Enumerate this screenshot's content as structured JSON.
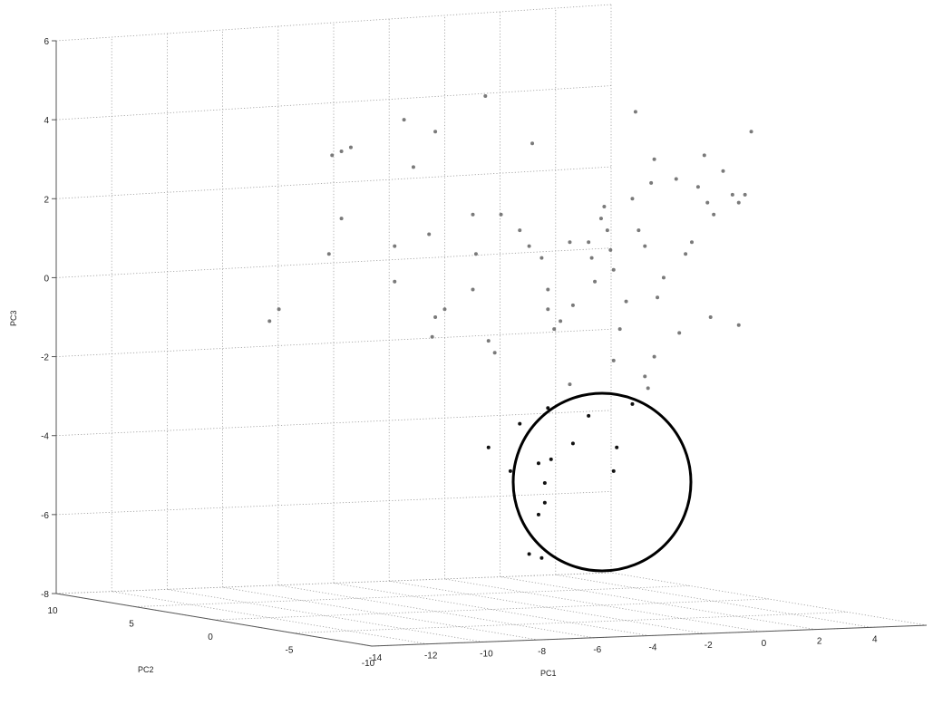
{
  "chart_data": {
    "type": "scatter",
    "projection": "3d",
    "title": "",
    "xlabel": "PC1",
    "ylabel": "PC2",
    "zlabel": "PC3",
    "xlim": [
      -14,
      6
    ],
    "ylim": [
      -10,
      10
    ],
    "zlim": [
      -8,
      6
    ],
    "grid": true,
    "x_ticks": [
      "-14",
      "-12",
      "-10",
      "-8",
      "-6",
      "-4",
      "-2",
      "0",
      "2",
      "4"
    ],
    "y_ticks": [
      "10",
      "5",
      "0",
      "-5",
      "-10"
    ],
    "z_ticks": [
      "6",
      "4",
      "2",
      "0",
      "-2",
      "-4",
      "-6",
      "-8"
    ],
    "point_color": "#7a7a7a",
    "highlight_color": "#111111",
    "highlight": {
      "shape": "circle",
      "description_points": "points with PC3 below about -3"
    },
    "points": [
      [
        -13.5,
        0,
        -1.1
      ],
      [
        -13.2,
        0,
        -0.8
      ],
      [
        -11.6,
        0,
        0.6
      ],
      [
        -11.5,
        0,
        3.1
      ],
      [
        -11.2,
        0,
        3.2
      ],
      [
        -10.9,
        0,
        3.3
      ],
      [
        -11.2,
        0,
        1.5
      ],
      [
        -9.5,
        0,
        0.8
      ],
      [
        -9.5,
        0,
        -0.1
      ],
      [
        -9.2,
        0,
        4.0
      ],
      [
        -8.9,
        0,
        2.8
      ],
      [
        -8.4,
        0,
        1.1
      ],
      [
        -8.3,
        0,
        -1.5
      ],
      [
        -8.2,
        0,
        -1.0
      ],
      [
        -7.9,
        0,
        -0.8
      ],
      [
        -8.2,
        0,
        3.7
      ],
      [
        -7.0,
        0,
        1.6
      ],
      [
        -6.9,
        0,
        0.6
      ],
      [
        -7.0,
        0,
        -0.3
      ],
      [
        -6.6,
        0,
        4.6
      ],
      [
        -6.3,
        0,
        -1.9
      ],
      [
        -6.1,
        0,
        1.6
      ],
      [
        -5.5,
        0,
        1.2
      ],
      [
        -5.2,
        0,
        0.8
      ],
      [
        -5.1,
        0,
        3.4
      ],
      [
        -4.8,
        0,
        0.5
      ],
      [
        -4.6,
        0,
        -0.3
      ],
      [
        -4.6,
        0,
        -0.8
      ],
      [
        -4.4,
        0,
        -1.3
      ],
      [
        -4.2,
        0,
        -1.1
      ],
      [
        -3.9,
        0,
        0.9
      ],
      [
        -3.8,
        0,
        -0.7
      ],
      [
        -3.3,
        0,
        0.9
      ],
      [
        -3.2,
        0,
        0.5
      ],
      [
        -3.1,
        0,
        -0.1
      ],
      [
        -2.9,
        0,
        1.5
      ],
      [
        -2.8,
        0,
        1.8
      ],
      [
        -2.7,
        0,
        1.2
      ],
      [
        -2.6,
        0,
        0.7
      ],
      [
        -2.5,
        0,
        0.2
      ],
      [
        -2.3,
        0,
        -1.3
      ],
      [
        -2.1,
        0,
        -0.6
      ],
      [
        -1.9,
        0,
        2.0
      ],
      [
        -1.8,
        0,
        4.2
      ],
      [
        -1.7,
        0,
        1.2
      ],
      [
        -1.5,
        0,
        0.8
      ],
      [
        -1.3,
        0,
        2.4
      ],
      [
        -1.2,
        0,
        3.0
      ],
      [
        -1.1,
        0,
        -0.5
      ],
      [
        -0.9,
        0,
        0.0
      ],
      [
        -0.5,
        0,
        2.5
      ],
      [
        -0.2,
        0,
        0.6
      ],
      [
        0.0,
        0,
        0.9
      ],
      [
        0.2,
        0,
        2.3
      ],
      [
        0.4,
        0,
        3.1
      ],
      [
        0.5,
        0,
        1.9
      ],
      [
        0.7,
        0,
        1.6
      ],
      [
        1.0,
        0,
        2.7
      ],
      [
        1.3,
        0,
        2.1
      ],
      [
        1.5,
        0,
        1.9
      ],
      [
        1.7,
        0,
        2.1
      ],
      [
        1.9,
        0,
        3.7
      ],
      [
        1.5,
        0,
        -1.2
      ],
      [
        0.6,
        0,
        -1.0
      ],
      [
        -0.4,
        0,
        -1.4
      ],
      [
        -2.5,
        0,
        -2.1
      ],
      [
        -1.5,
        0,
        -2.5
      ],
      [
        -1.4,
        0,
        -2.8
      ],
      [
        -1.9,
        0,
        -3.2
      ],
      [
        -3.9,
        0,
        -2.7
      ],
      [
        -4.6,
        0,
        -3.3
      ],
      [
        -5.5,
        0,
        -3.7
      ],
      [
        -6.5,
        0,
        -4.3
      ],
      [
        -5.8,
        0,
        -4.9
      ],
      [
        -4.9,
        0,
        -4.7
      ],
      [
        -4.5,
        0,
        -4.6
      ],
      [
        -3.8,
        0,
        -4.2
      ],
      [
        -3.3,
        0,
        -3.5
      ],
      [
        -2.4,
        0,
        -4.3
      ],
      [
        -2.5,
        0,
        -4.9
      ],
      [
        -4.7,
        0,
        -5.2
      ],
      [
        -4.7,
        0,
        -5.7
      ],
      [
        -4.9,
        0,
        -6.0
      ],
      [
        -5.2,
        0,
        -7.0
      ],
      [
        -4.8,
        0,
        -7.1
      ],
      [
        -6.5,
        0,
        -1.6
      ],
      [
        -1.2,
        0,
        -2.0
      ]
    ]
  }
}
